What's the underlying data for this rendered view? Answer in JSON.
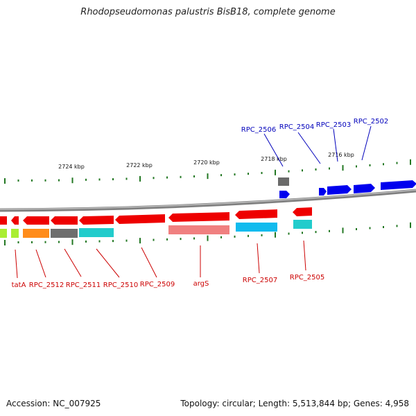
{
  "title": "Rhodopseudomonas palustris BisB18, complete genome",
  "footer": {
    "accession": "Accession: NC_007925",
    "summary": "Topology: circular; Length: 5,513,844 bp; Genes: 4,958"
  },
  "scale_ticks": [
    "2724 kbp",
    "2722 kbp",
    "2720 kbp",
    "2718 kbp",
    "2716 kbp"
  ],
  "genes_forward": [
    "RPC_2506",
    "RPC_2504",
    "RPC_2503",
    "RPC_2502"
  ],
  "genes_reverse": [
    "tatA",
    "RPC_2512",
    "RPC_2511",
    "RPC_2510",
    "RPC_2509",
    "argS",
    "RPC_2507",
    "RPC_2505"
  ],
  "colors": {
    "backbone": "#808080",
    "forward_gene": "#0000ee",
    "reverse_gene": "#ee0000",
    "tick": "#227722",
    "cog_orange": "#ff8c1a",
    "cog_gray": "#6e6e6e",
    "cog_cyan": "#22cccc",
    "cog_pink": "#f08080",
    "cog_lightblue": "#11bbee",
    "cog_lime": "#aaee33"
  }
}
